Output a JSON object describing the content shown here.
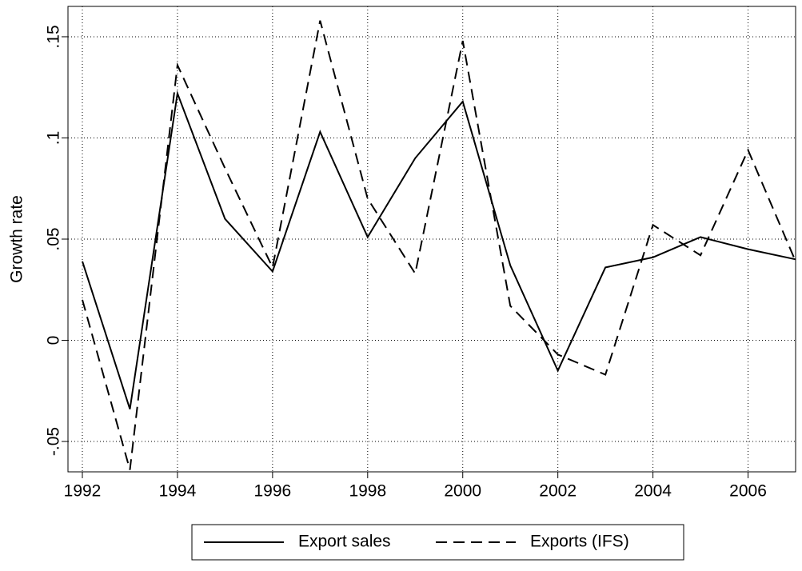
{
  "chart_data": {
    "type": "line",
    "x": [
      1992,
      1993,
      1994,
      1995,
      1996,
      1997,
      1998,
      1999,
      2000,
      2001,
      2002,
      2003,
      2004,
      2005,
      2006,
      2007
    ],
    "series": [
      {
        "name": "Export sales",
        "color": "#000000",
        "line_style": "solid",
        "values": [
          0.039,
          -0.034,
          0.122,
          0.06,
          0.034,
          0.103,
          0.051,
          0.09,
          0.118,
          0.037,
          -0.015,
          0.036,
          0.041,
          0.051,
          0.045,
          0.04
        ]
      },
      {
        "name": "Exports (IFS)",
        "color": "#000000",
        "line_style": "dashed",
        "values": [
          0.02,
          -0.064,
          0.136,
          0.085,
          0.036,
          0.158,
          0.07,
          0.033,
          0.148,
          0.017,
          -0.007,
          -0.017,
          0.057,
          0.042,
          0.094,
          0.039
        ]
      }
    ],
    "y_label": "Growth rate",
    "xlim": [
      1992,
      2007
    ],
    "xticks": [
      1992,
      1994,
      1996,
      1998,
      2000,
      2002,
      2004,
      2006
    ],
    "ylim": [
      -0.065,
      0.165
    ],
    "yticks": [
      {
        "value": -0.05,
        "label": "-.05"
      },
      0,
      {
        "value": 0.05,
        "label": ".05"
      },
      {
        "value": 0.1,
        "label": ".1"
      },
      {
        "value": 0.15,
        "label": ".15"
      }
    ],
    "grid": true,
    "legend": "bottom"
  }
}
